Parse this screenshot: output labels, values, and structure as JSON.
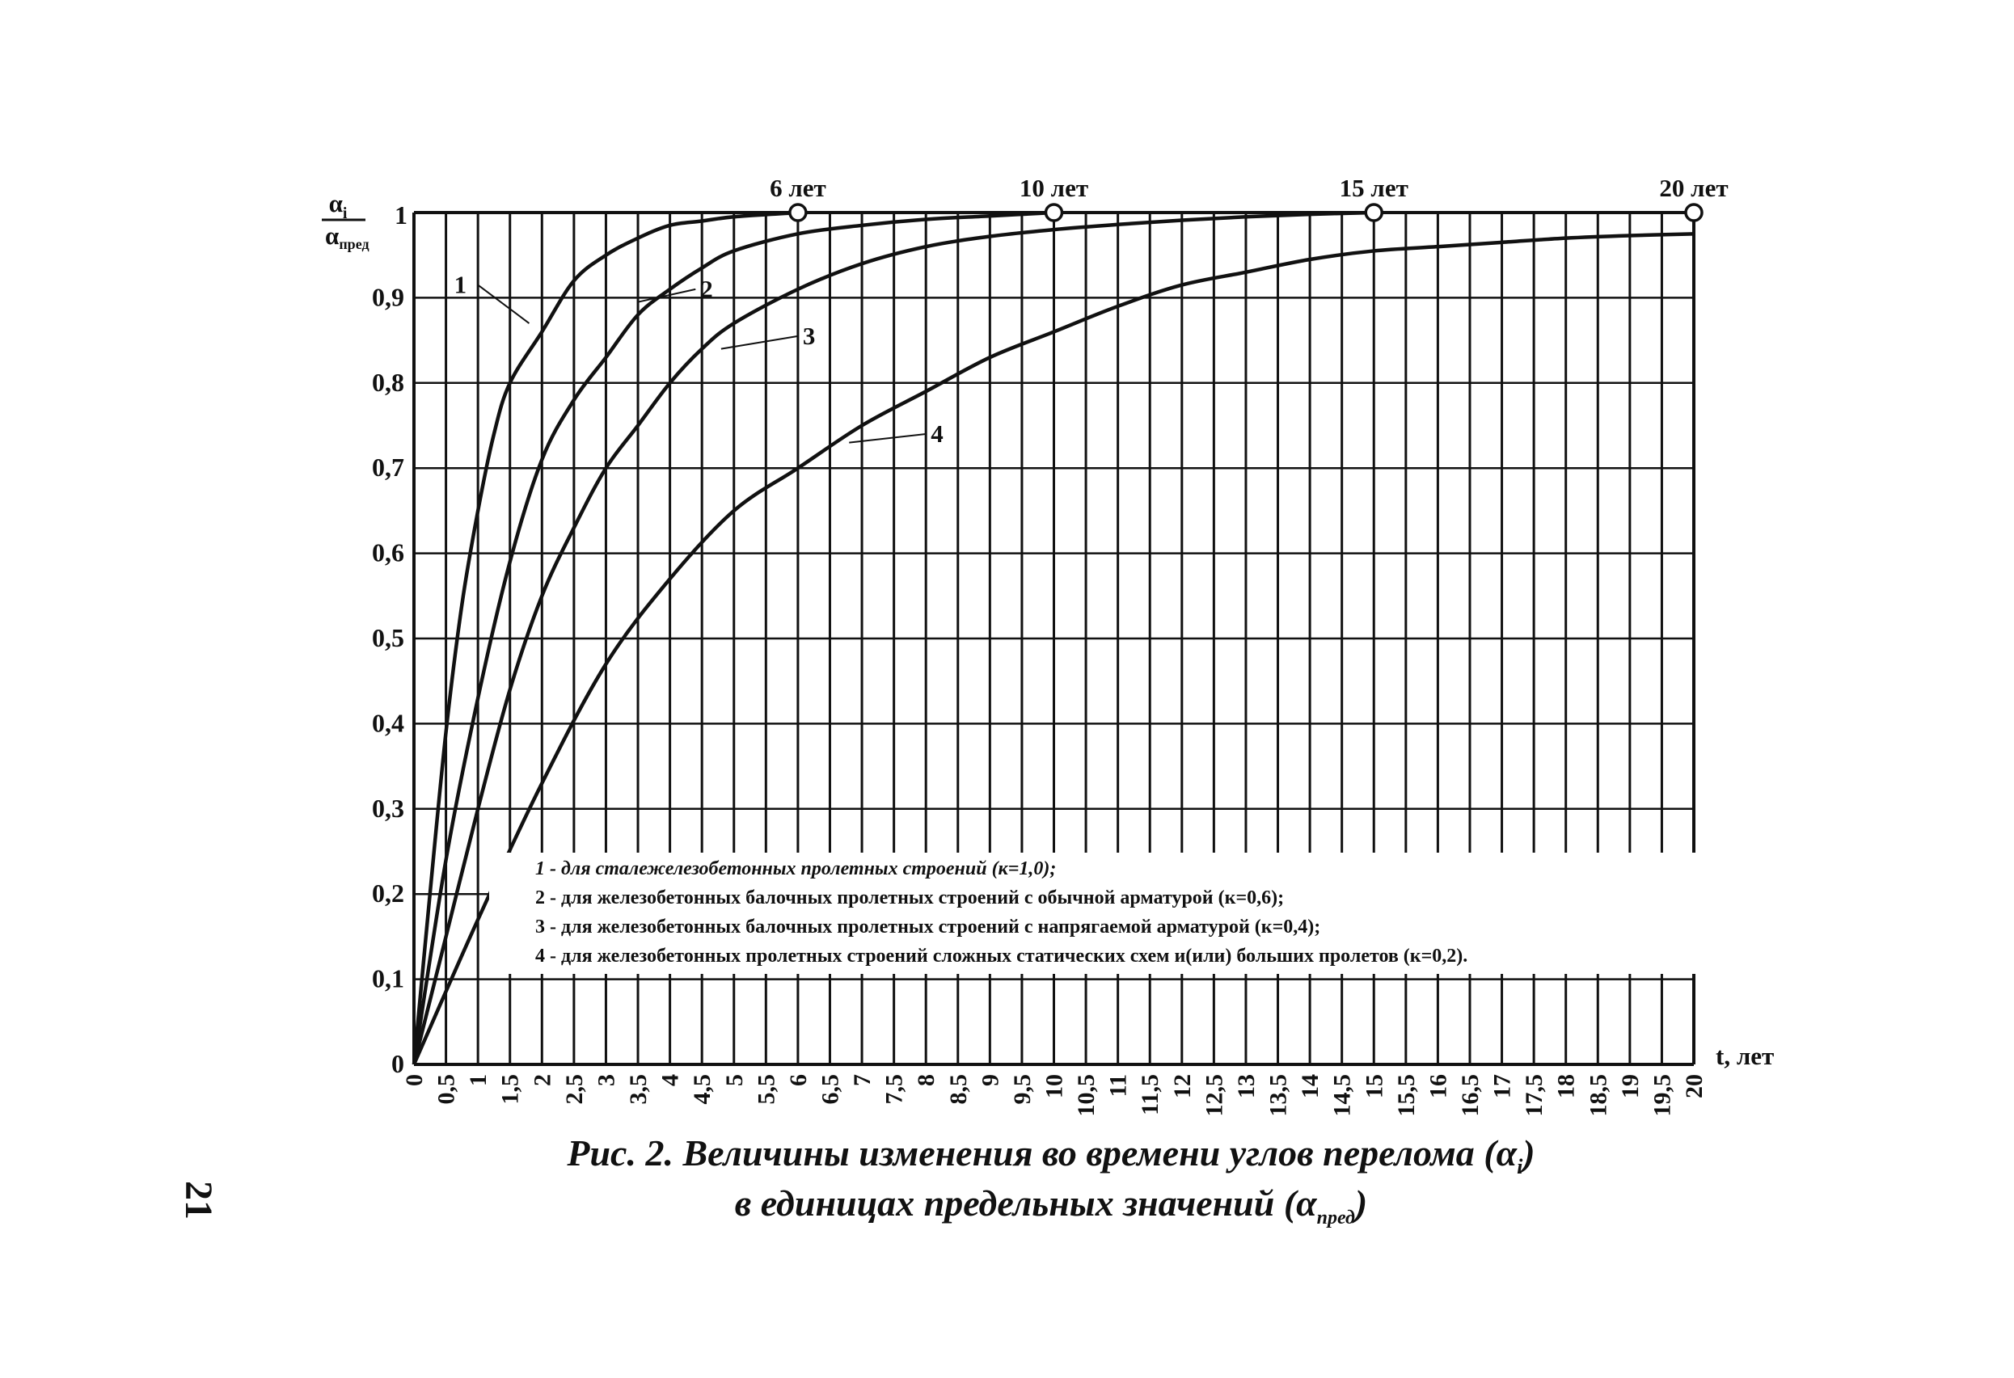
{
  "chart_data": {
    "type": "line",
    "ylabel": {
      "num": "α",
      "num_sub": "i",
      "den": "α",
      "den_sub": "пред"
    },
    "xlabel": "t, лет",
    "xlim": [
      0,
      20
    ],
    "ylim": [
      0,
      1
    ],
    "grid": true,
    "x_ticks": [
      "0",
      "0,5",
      "1",
      "1,5",
      "2",
      "2,5",
      "3",
      "3,5",
      "4",
      "4,5",
      "5",
      "5,5",
      "6",
      "6,5",
      "7",
      "7,5",
      "8",
      "8,5",
      "9",
      "9,5",
      "10",
      "10,5",
      "11",
      "11,5",
      "12",
      "12,5",
      "13",
      "13,5",
      "14",
      "14,5",
      "15",
      "15,5",
      "16",
      "16,5",
      "17",
      "17,5",
      "18",
      "18,5",
      "19",
      "19,5",
      "20"
    ],
    "y_ticks": [
      "0",
      "0,1",
      "0,2",
      "0,3",
      "0,4",
      "0,5",
      "0,6",
      "0,7",
      "0,8",
      "0,9",
      "1"
    ],
    "top_markers": [
      {
        "x": 6,
        "label": "6 лет"
      },
      {
        "x": 10,
        "label": "10 лет"
      },
      {
        "x": 15,
        "label": "15 лет"
      },
      {
        "x": 20,
        "label": "20 лет"
      }
    ],
    "series": [
      {
        "name": "1",
        "label_xy": [
          1.8,
          0.87
        ],
        "label_at": [
          1.0,
          0.915
        ],
        "x": [
          0,
          0.25,
          0.5,
          0.75,
          1,
          1.25,
          1.5,
          2,
          2.5,
          3,
          3.5,
          4,
          4.5,
          5,
          6
        ],
        "y": [
          0,
          0.2,
          0.39,
          0.54,
          0.65,
          0.74,
          0.8,
          0.86,
          0.92,
          0.95,
          0.97,
          0.985,
          0.99,
          0.995,
          1.0
        ]
      },
      {
        "name": "2",
        "label_xy": [
          3.5,
          0.895
        ],
        "label_at": [
          4.4,
          0.91
        ],
        "x": [
          0,
          0.5,
          1,
          1.5,
          2,
          2.5,
          3,
          3.5,
          4,
          4.5,
          5,
          6,
          7,
          8,
          9,
          10
        ],
        "y": [
          0,
          0.24,
          0.43,
          0.59,
          0.71,
          0.78,
          0.83,
          0.88,
          0.91,
          0.935,
          0.955,
          0.975,
          0.985,
          0.992,
          0.996,
          1.0
        ]
      },
      {
        "name": "3",
        "label_xy": [
          4.8,
          0.84
        ],
        "label_at": [
          6.0,
          0.855
        ],
        "x": [
          0,
          0.5,
          1,
          1.5,
          2,
          2.5,
          3,
          3.5,
          4,
          4.5,
          5,
          6,
          7,
          8,
          9,
          10,
          11,
          12,
          13,
          14,
          15
        ],
        "y": [
          0,
          0.15,
          0.3,
          0.44,
          0.55,
          0.63,
          0.7,
          0.75,
          0.8,
          0.84,
          0.87,
          0.91,
          0.94,
          0.96,
          0.972,
          0.98,
          0.986,
          0.991,
          0.995,
          0.998,
          1.0
        ]
      },
      {
        "name": "4",
        "label_xy": [
          6.8,
          0.73
        ],
        "label_at": [
          8.0,
          0.74
        ],
        "x": [
          0,
          1,
          2,
          3,
          4,
          5,
          6,
          7,
          8,
          9,
          10,
          11,
          12,
          13,
          14,
          15,
          16,
          17,
          18,
          19,
          20
        ],
        "y": [
          0,
          0.17,
          0.33,
          0.47,
          0.57,
          0.65,
          0.7,
          0.75,
          0.79,
          0.83,
          0.86,
          0.89,
          0.915,
          0.93,
          0.945,
          0.955,
          0.96,
          0.965,
          0.97,
          0.973,
          0.975
        ]
      }
    ],
    "legend": [
      {
        "text": "1 - для сталежелезобетонных пролетных строений (к=1,0);",
        "italic": true
      },
      {
        "text": "2 - для железобетонных балочных пролетных строений с обычной арматурой (к=0,6);",
        "italic": false
      },
      {
        "text": "3 - для железобетонных балочных пролетных строений с напрягаемой арматурой (к=0,4);",
        "italic": false
      },
      {
        "text": "4 - для железобетонных пролетных строений сложных статических схем и(или) больших пролетов (к=0,2).",
        "italic": false
      }
    ]
  },
  "caption": {
    "line1": "Рис. 2. Величины изменения во времени углов перелома (α",
    "line1_sub": "i",
    "line1_end": ")",
    "line2": "в единицах предельных значений (α",
    "line2_sub": "пред",
    "line2_end": ")"
  },
  "page_number": "21"
}
